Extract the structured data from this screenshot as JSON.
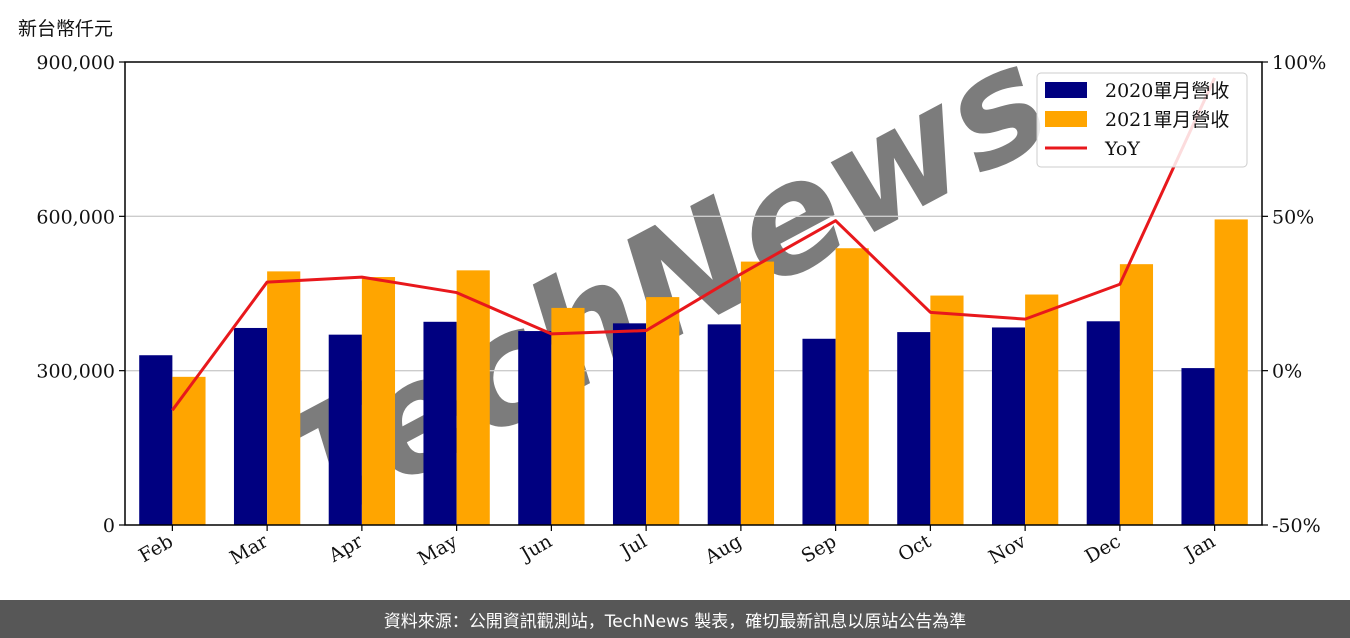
{
  "unit_label": "新台幣仟元",
  "footer_text": "資料來源：公開資訊觀測站，TechNews 製表，確切最新訊息以原站公告為準",
  "watermark": "TechNews",
  "colors": {
    "series_2020": "#000080",
    "series_2021": "#FFA500",
    "yoy": "#E8181C",
    "grid": "#cccccc",
    "footer_bg": "#575757"
  },
  "chart_data": {
    "type": "bar",
    "categories": [
      "Feb",
      "Mar",
      "Apr",
      "May",
      "Jun",
      "Jul",
      "Aug",
      "Sep",
      "Oct",
      "Nov",
      "Dec",
      "Jan"
    ],
    "series": [
      {
        "name": "2020單月營收",
        "values": [
          330000,
          383000,
          370000,
          395000,
          377000,
          392000,
          390000,
          362000,
          375000,
          384000,
          396000,
          305000
        ]
      },
      {
        "name": "2021單月營收",
        "values": [
          288000,
          493000,
          482000,
          495000,
          422000,
          443000,
          512000,
          538000,
          446000,
          448000,
          507000,
          594000
        ]
      }
    ],
    "line_series": {
      "name": "YoY",
      "axis": "right",
      "values": [
        -12.8,
        28.7,
        30.3,
        25.3,
        11.9,
        13.0,
        31.3,
        48.6,
        18.9,
        16.7,
        28.0,
        94.8
      ]
    },
    "ylim": [
      0,
      900000
    ],
    "yticks": [
      "0",
      "300,000",
      "600,000",
      "900,000"
    ],
    "y2lim": [
      -50,
      100
    ],
    "y2ticks": [
      "-50%",
      "0%",
      "50%",
      "100%"
    ],
    "legend_position": "top-right",
    "grid": "horizontal"
  }
}
